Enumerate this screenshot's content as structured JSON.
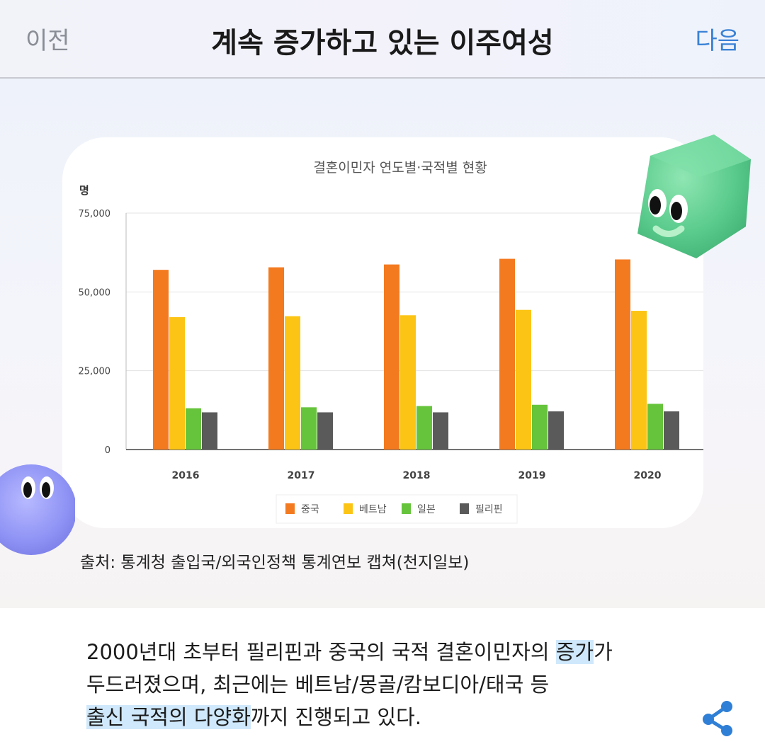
{
  "header": {
    "prev_label": "이전",
    "title": "계속 증가하고 있는 이주여성",
    "next_label": "다음"
  },
  "chart_data": {
    "type": "bar",
    "title": "결혼이민자 연도별·국적별 현황",
    "ylabel": "명",
    "xlabel": "",
    "categories": [
      "2016",
      "2017",
      "2018",
      "2019",
      "2020"
    ],
    "series": [
      {
        "name": "중국",
        "color": "#f47a20",
        "values": [
          57000,
          57800,
          58700,
          60500,
          60300
        ]
      },
      {
        "name": "베트남",
        "color": "#fcc515",
        "values": [
          42000,
          42300,
          42600,
          44300,
          44000
        ]
      },
      {
        "name": "일본",
        "color": "#66c43c",
        "values": [
          13100,
          13400,
          13800,
          14200,
          14500
        ]
      },
      {
        "name": "필리핀",
        "color": "#5a5a5a",
        "values": [
          11800,
          11800,
          11800,
          12100,
          12100
        ]
      }
    ],
    "ylim": [
      0,
      75000
    ],
    "yticks": [
      0,
      25000,
      50000,
      75000
    ],
    "ytick_labels": [
      "0",
      "25,000",
      "50,000",
      "75,000"
    ],
    "grid": true,
    "legend": "bottom"
  },
  "source_caption": "출처: 통계청 출입국/외국인정책 통계연보 캡쳐(천지일보)",
  "body": {
    "line1_text": "2000년대 초부터 필리핀과 중국의 국적 결혼이민자의 ",
    "line1_highlight": "증가",
    "line1_tail": "가",
    "line2_text": "두드러졌으며, 최근에는 베트남/몽골/캄보디아/태국 등",
    "line3_highlight": "출신 국적의 다양화",
    "line3_tail": "까지 진행되고 있다."
  },
  "icons": {
    "share": "share-icon",
    "share_color": "#2f7fd6"
  }
}
